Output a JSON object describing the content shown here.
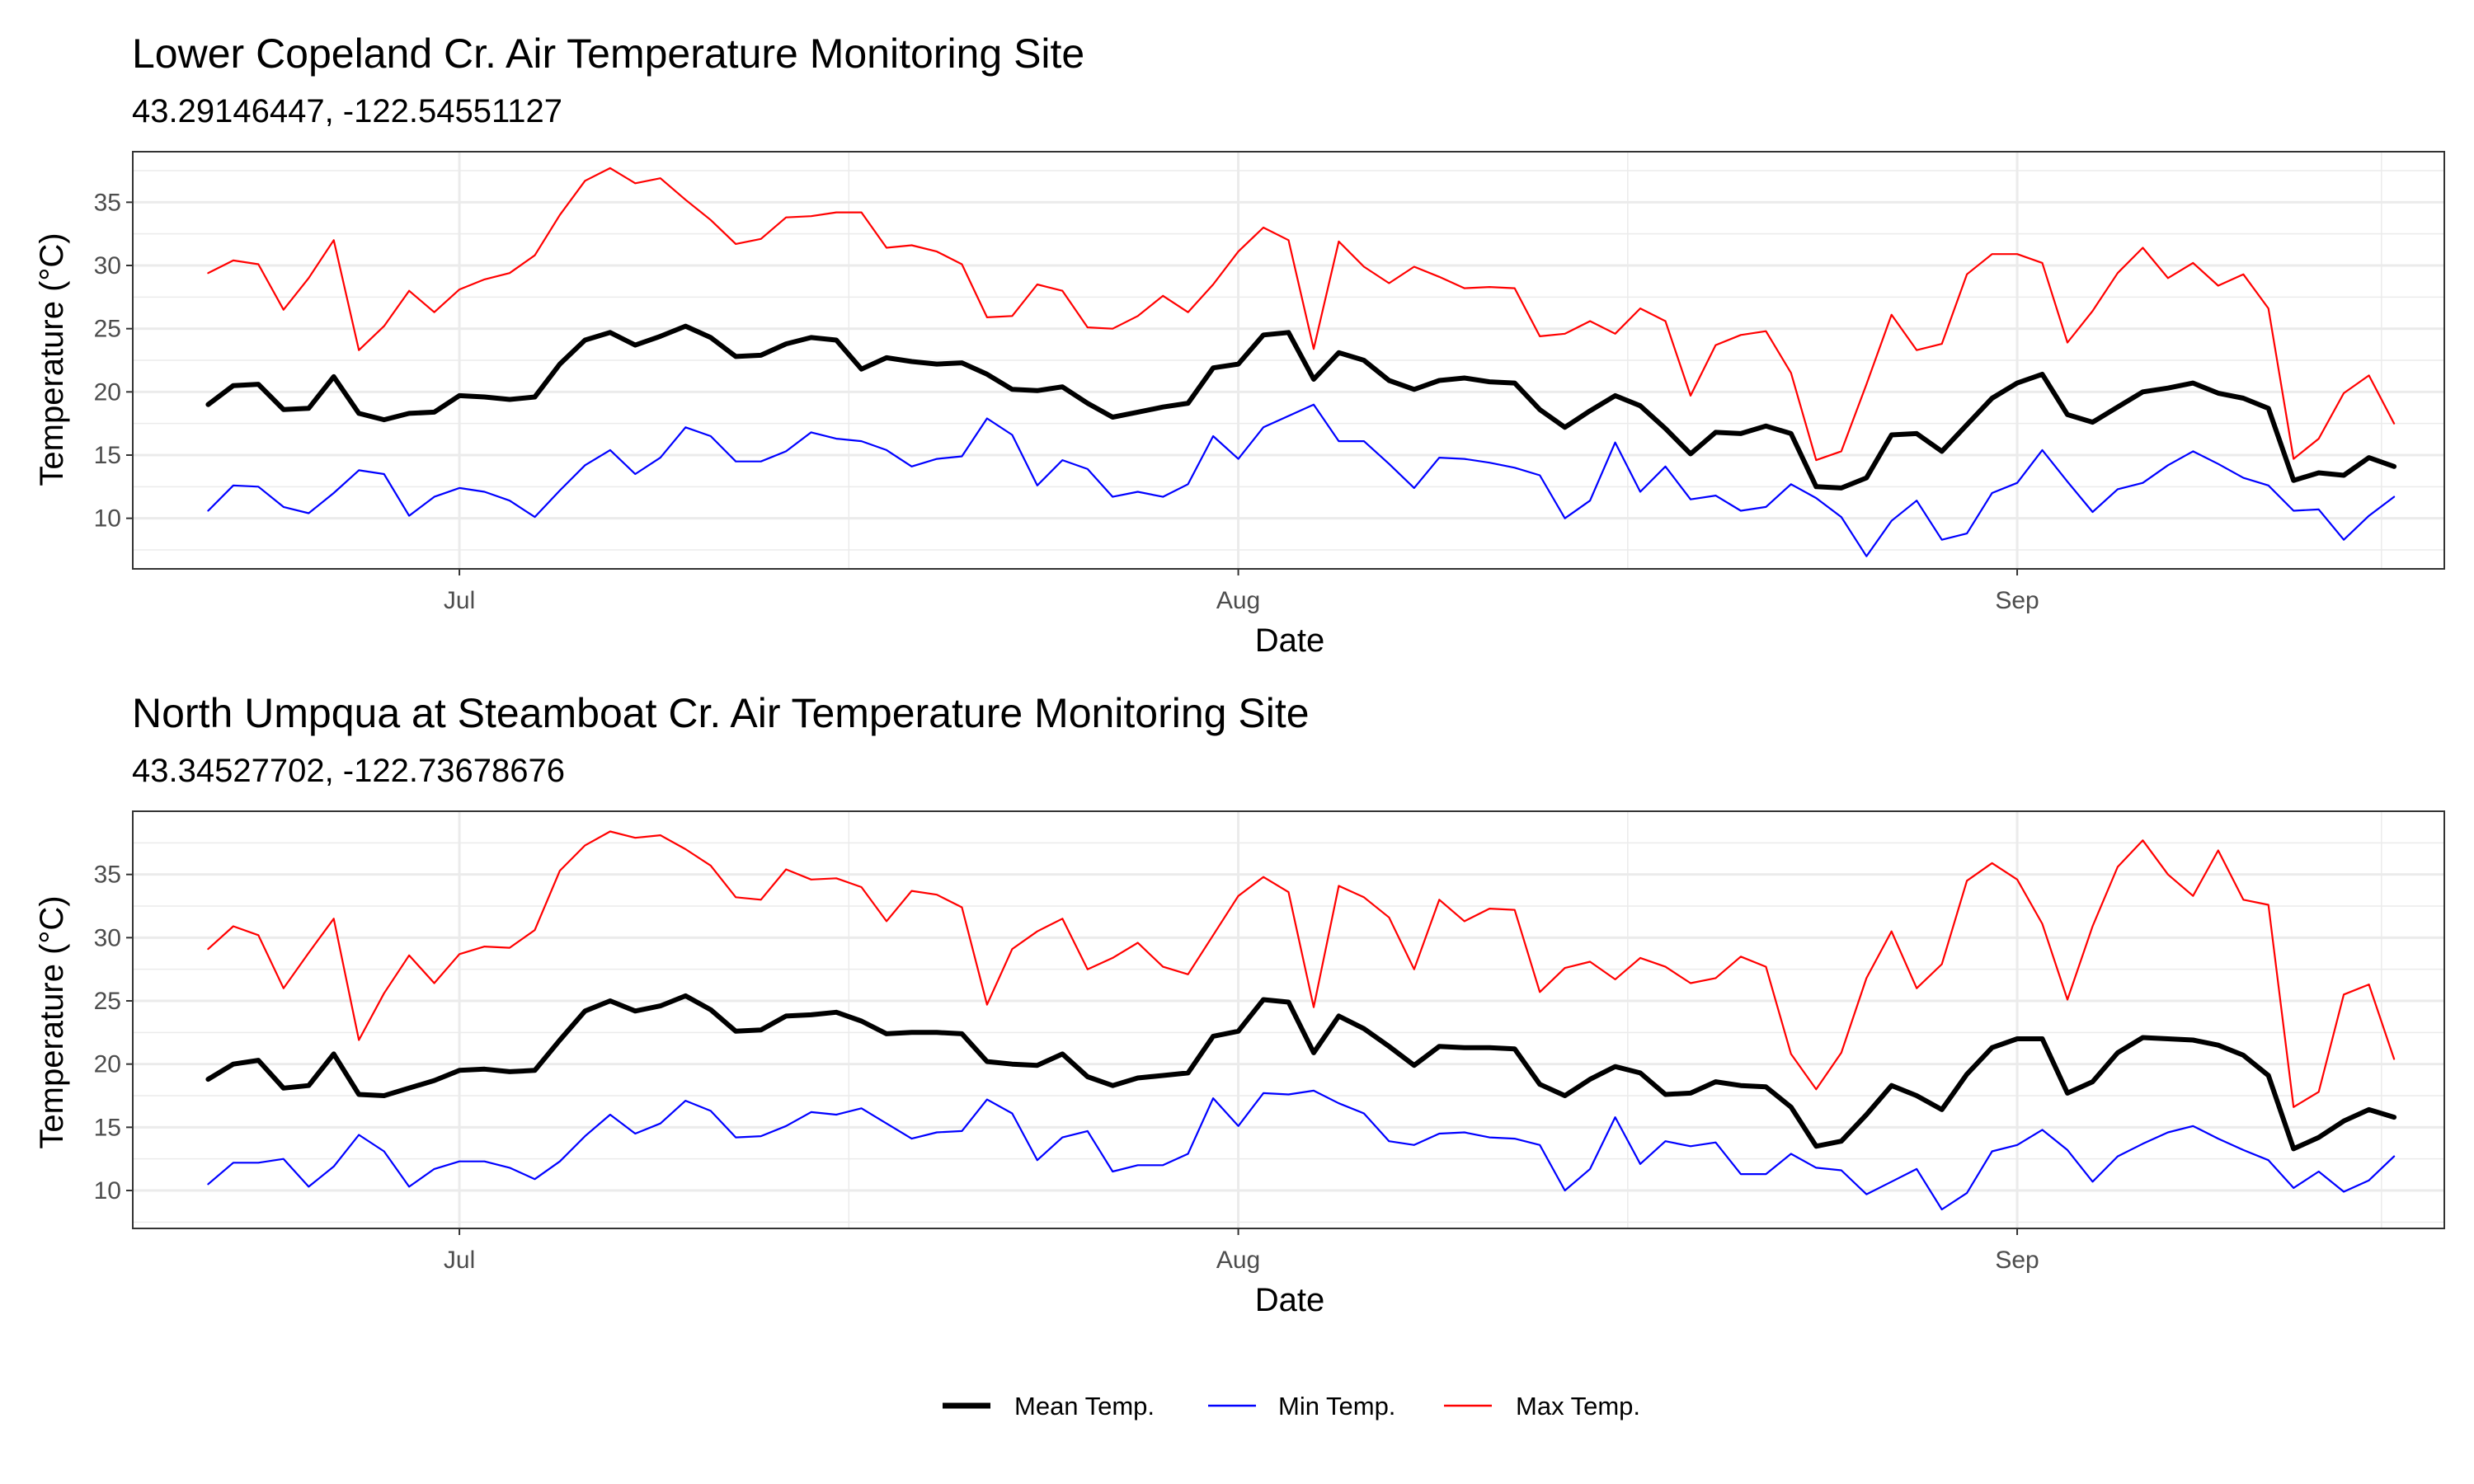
{
  "chart_data": [
    {
      "type": "line",
      "title": "Lower Copeland Cr. Air Temperature Monitoring Site",
      "subtitle": "43.29146447, -122.54551127",
      "xlabel": "Date",
      "ylabel": "Temperature (°C)",
      "x_start": "2021-06-21",
      "x_end": "2021-09-15",
      "xlim": [
        "2021-06-18",
        "2021-09-18"
      ],
      "ylim": [
        6,
        39
      ],
      "y_ticks": [
        10,
        15,
        20,
        25,
        30,
        35
      ],
      "x_ticks": [
        {
          "date": "2021-07-01",
          "label": "Jul"
        },
        {
          "date": "2021-08-01",
          "label": "Aug"
        },
        {
          "date": "2021-09-01",
          "label": "Sep"
        }
      ],
      "grid": true,
      "series": [
        {
          "name": "Mean Temp.",
          "color": "#000000",
          "values": [
            19.0,
            20.5,
            20.6,
            18.6,
            18.7,
            21.2,
            18.3,
            17.8,
            18.3,
            18.4,
            19.7,
            19.6,
            19.4,
            19.6,
            22.2,
            24.1,
            24.7,
            23.7,
            24.4,
            25.2,
            24.3,
            22.8,
            22.9,
            23.8,
            24.3,
            24.1,
            21.8,
            22.7,
            22.4,
            22.2,
            22.3,
            21.4,
            20.2,
            20.1,
            20.4,
            19.1,
            18.0,
            18.4,
            18.8,
            19.1,
            21.9,
            22.2,
            24.5,
            24.7,
            21.0,
            23.1,
            22.5,
            20.9,
            20.2,
            20.9,
            21.1,
            20.8,
            20.7,
            18.6,
            17.2,
            18.5,
            19.7,
            18.9,
            17.1,
            15.1,
            16.8,
            16.7,
            17.3,
            16.7,
            12.5,
            12.4,
            13.2,
            16.6,
            16.7,
            15.3,
            17.4,
            19.5,
            20.7,
            21.4,
            18.2,
            17.6,
            18.8,
            20.0,
            20.3,
            20.7,
            19.9,
            19.5,
            18.7,
            13.0,
            13.6,
            13.4,
            14.8,
            14.1
          ]
        },
        {
          "name": "Min Temp.",
          "color": "#0000ff",
          "values": [
            10.6,
            12.6,
            12.5,
            10.9,
            10.4,
            12.0,
            13.8,
            13.5,
            10.2,
            11.7,
            12.4,
            12.1,
            11.4,
            10.1,
            12.2,
            14.2,
            15.4,
            13.5,
            14.8,
            17.2,
            16.5,
            14.5,
            14.5,
            15.3,
            16.8,
            16.3,
            16.1,
            15.4,
            14.1,
            14.7,
            14.9,
            17.9,
            16.6,
            12.6,
            14.6,
            13.9,
            11.7,
            12.1,
            11.7,
            12.7,
            16.5,
            14.7,
            17.2,
            18.1,
            19.0,
            16.1,
            16.1,
            14.3,
            12.4,
            14.8,
            14.7,
            14.4,
            14.0,
            13.4,
            10.0,
            11.4,
            16.0,
            12.1,
            14.1,
            11.5,
            11.8,
            10.6,
            10.9,
            12.7,
            11.6,
            10.1,
            7.0,
            9.8,
            11.4,
            8.3,
            8.8,
            12.0,
            12.8,
            15.4,
            12.9,
            10.5,
            12.3,
            12.8,
            14.2,
            15.3,
            14.3,
            13.2,
            12.6,
            10.6,
            10.7,
            8.3,
            10.2,
            11.7
          ]
        },
        {
          "name": "Max Temp.",
          "color": "#ff0000",
          "values": [
            29.4,
            30.4,
            30.1,
            26.5,
            29.0,
            32.0,
            23.3,
            25.2,
            28.0,
            26.3,
            28.1,
            28.9,
            29.4,
            30.8,
            34.0,
            36.7,
            37.7,
            36.5,
            36.9,
            35.2,
            33.6,
            31.7,
            32.1,
            33.8,
            33.9,
            34.2,
            34.2,
            31.4,
            31.6,
            31.1,
            30.1,
            25.9,
            26.0,
            28.5,
            28.0,
            25.1,
            25.0,
            26.0,
            27.6,
            26.3,
            28.5,
            31.1,
            33.0,
            32.0,
            23.4,
            31.9,
            29.9,
            28.6,
            29.9,
            29.1,
            28.2,
            28.3,
            28.2,
            24.4,
            24.6,
            25.6,
            24.6,
            26.6,
            25.6,
            19.7,
            23.7,
            24.5,
            24.8,
            21.5,
            14.6,
            15.3,
            20.6,
            26.1,
            23.3,
            23.8,
            29.3,
            30.9,
            30.9,
            30.2,
            23.9,
            26.4,
            29.4,
            31.4,
            29.0,
            30.2,
            28.4,
            29.3,
            26.6,
            14.7,
            16.3,
            19.9,
            21.3,
            17.5
          ]
        }
      ]
    },
    {
      "type": "line",
      "title": "North Umpqua at Steamboat Cr. Air Temperature Monitoring Site",
      "subtitle": "43.34527702, -122.73678676",
      "xlabel": "Date",
      "ylabel": "Temperature (°C)",
      "x_start": "2021-06-21",
      "x_end": "2021-09-15",
      "xlim": [
        "2021-06-18",
        "2021-09-18"
      ],
      "ylim": [
        7,
        40
      ],
      "y_ticks": [
        10,
        15,
        20,
        25,
        30,
        35
      ],
      "x_ticks": [
        {
          "date": "2021-07-01",
          "label": "Jul"
        },
        {
          "date": "2021-08-01",
          "label": "Aug"
        },
        {
          "date": "2021-09-01",
          "label": "Sep"
        }
      ],
      "grid": true,
      "series": [
        {
          "name": "Mean Temp.",
          "color": "#000000",
          "values": [
            18.8,
            20.0,
            20.3,
            18.1,
            18.3,
            20.8,
            17.6,
            17.5,
            18.1,
            18.7,
            19.5,
            19.6,
            19.4,
            19.5,
            21.9,
            24.2,
            25.0,
            24.2,
            24.6,
            25.4,
            24.3,
            22.6,
            22.7,
            23.8,
            23.9,
            24.1,
            23.4,
            22.4,
            22.5,
            22.5,
            22.4,
            20.2,
            20.0,
            19.9,
            20.8,
            19.0,
            18.3,
            18.9,
            19.1,
            19.3,
            22.2,
            22.6,
            25.1,
            24.9,
            20.9,
            23.8,
            22.8,
            21.4,
            19.9,
            21.4,
            21.3,
            21.3,
            21.2,
            18.4,
            17.5,
            18.8,
            19.8,
            19.3,
            17.6,
            17.7,
            18.6,
            18.3,
            18.2,
            16.6,
            13.5,
            13.9,
            16.0,
            18.3,
            17.5,
            16.4,
            19.2,
            21.3,
            22.0,
            22.0,
            17.7,
            18.6,
            20.9,
            22.1,
            22.0,
            21.9,
            21.5,
            20.7,
            19.1,
            13.3,
            14.2,
            15.5,
            16.4,
            15.8
          ]
        },
        {
          "name": "Min Temp.",
          "color": "#0000ff",
          "values": [
            10.5,
            12.2,
            12.2,
            12.5,
            10.3,
            11.9,
            14.4,
            13.1,
            10.3,
            11.7,
            12.3,
            12.3,
            11.8,
            10.9,
            12.3,
            14.3,
            16.0,
            14.5,
            15.3,
            17.1,
            16.3,
            14.2,
            14.3,
            15.1,
            16.2,
            16.0,
            16.5,
            15.3,
            14.1,
            14.6,
            14.7,
            17.2,
            16.1,
            12.4,
            14.2,
            14.7,
            11.5,
            12.0,
            12.0,
            12.9,
            17.3,
            15.1,
            17.7,
            17.6,
            17.9,
            16.9,
            16.1,
            13.9,
            13.6,
            14.5,
            14.6,
            14.2,
            14.1,
            13.6,
            10.0,
            11.7,
            15.8,
            12.1,
            13.9,
            13.5,
            13.8,
            11.3,
            11.3,
            12.9,
            11.8,
            11.6,
            9.7,
            10.7,
            11.7,
            8.5,
            9.8,
            13.1,
            13.6,
            14.8,
            13.2,
            10.7,
            12.7,
            13.7,
            14.6,
            15.1,
            14.1,
            13.2,
            12.4,
            10.2,
            11.5,
            9.9,
            10.8,
            12.7
          ]
        },
        {
          "name": "Max Temp.",
          "color": "#ff0000",
          "values": [
            29.1,
            30.9,
            30.2,
            26.0,
            28.8,
            31.5,
            21.9,
            25.6,
            28.6,
            26.4,
            28.7,
            29.3,
            29.2,
            30.6,
            35.3,
            37.3,
            38.4,
            37.9,
            38.1,
            37.0,
            35.7,
            33.2,
            33.0,
            35.4,
            34.6,
            34.7,
            34.0,
            31.3,
            33.7,
            33.4,
            32.4,
            24.7,
            29.1,
            30.5,
            31.5,
            27.5,
            28.4,
            29.6,
            27.7,
            27.1,
            30.2,
            33.3,
            34.8,
            33.6,
            24.5,
            34.1,
            33.2,
            31.6,
            27.5,
            33.0,
            31.3,
            32.3,
            32.2,
            25.7,
            27.6,
            28.1,
            26.7,
            28.4,
            27.7,
            26.4,
            26.8,
            28.5,
            27.7,
            20.8,
            18.0,
            20.9,
            26.8,
            30.5,
            26.0,
            27.9,
            34.5,
            35.9,
            34.6,
            31.1,
            25.1,
            30.9,
            35.6,
            37.7,
            35.0,
            33.3,
            36.9,
            33.0,
            32.6,
            16.6,
            17.8,
            25.5,
            26.3,
            20.4
          ]
        }
      ]
    }
  ],
  "legend": {
    "position": "bottom",
    "items": [
      {
        "label": "Mean Temp.",
        "color": "#000000"
      },
      {
        "label": "Min Temp.",
        "color": "#0000ff"
      },
      {
        "label": "Max Temp.",
        "color": "#ff0000"
      }
    ]
  }
}
